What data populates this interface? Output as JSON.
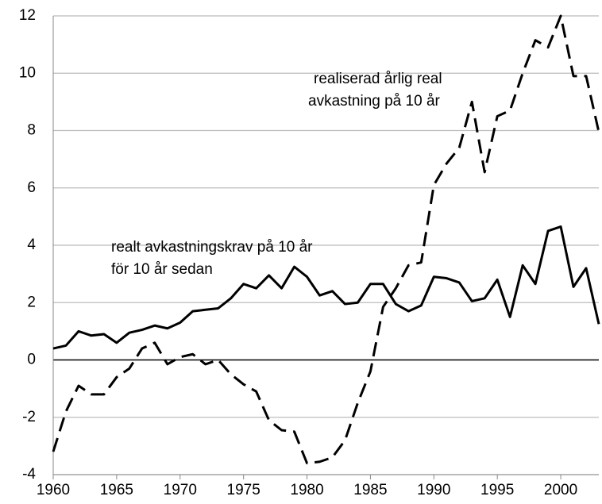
{
  "chart_data": {
    "type": "line",
    "x": [
      1960,
      1961,
      1962,
      1963,
      1964,
      1965,
      1966,
      1967,
      1968,
      1969,
      1970,
      1971,
      1972,
      1973,
      1974,
      1975,
      1976,
      1977,
      1978,
      1979,
      1980,
      1981,
      1982,
      1983,
      1984,
      1985,
      1986,
      1987,
      1988,
      1989,
      1990,
      1991,
      1992,
      1993,
      1994,
      1995,
      1996,
      1997,
      1998,
      1999,
      2000,
      2001,
      2002,
      2003
    ],
    "series": [
      {
        "color": "#000000",
        "dash": "solid",
        "values": [
          0.4,
          0.5,
          1.0,
          0.85,
          0.9,
          0.6,
          0.95,
          1.05,
          1.2,
          1.1,
          1.3,
          1.7,
          1.75,
          1.8,
          2.15,
          2.65,
          2.5,
          2.95,
          2.5,
          3.25,
          2.9,
          2.25,
          2.4,
          1.95,
          2.0,
          2.65,
          2.65,
          1.95,
          1.7,
          1.9,
          2.9,
          2.85,
          2.7,
          2.05,
          2.15,
          2.8,
          1.5,
          3.3,
          2.65,
          4.5,
          4.65,
          2.55,
          3.2,
          1.25
        ]
      },
      {
        "color": "#000000",
        "dash": "dashed",
        "values": [
          -3.2,
          -1.8,
          -0.9,
          -1.2,
          -1.2,
          -0.6,
          -0.3,
          0.4,
          0.6,
          -0.15,
          0.1,
          0.2,
          -0.15,
          0.0,
          -0.5,
          -0.85,
          -1.1,
          -2.1,
          -2.45,
          -2.5,
          -3.6,
          -3.55,
          -3.4,
          -2.8,
          -1.5,
          -0.4,
          1.85,
          2.5,
          3.3,
          3.4,
          6.1,
          6.85,
          7.4,
          9.0,
          6.55,
          8.5,
          8.7,
          10.0,
          11.15,
          10.9,
          12.0,
          9.9,
          9.9,
          7.95
        ]
      }
    ],
    "annotations": [
      {
        "lines": [
          "realiserad årlig real",
          "avkastning på 10 år"
        ]
      },
      {
        "lines": [
          "realt avkastningskrav på 10 år",
          "för 10 år sedan"
        ]
      }
    ],
    "xlim": [
      1960,
      2003
    ],
    "xticks": [
      1960,
      1965,
      1970,
      1975,
      1980,
      1985,
      1990,
      1995,
      2000
    ],
    "ylim": [
      -4,
      12
    ],
    "yticks": [
      -4,
      -2,
      0,
      2,
      4,
      6,
      8,
      10,
      12
    ],
    "grid": true
  }
}
